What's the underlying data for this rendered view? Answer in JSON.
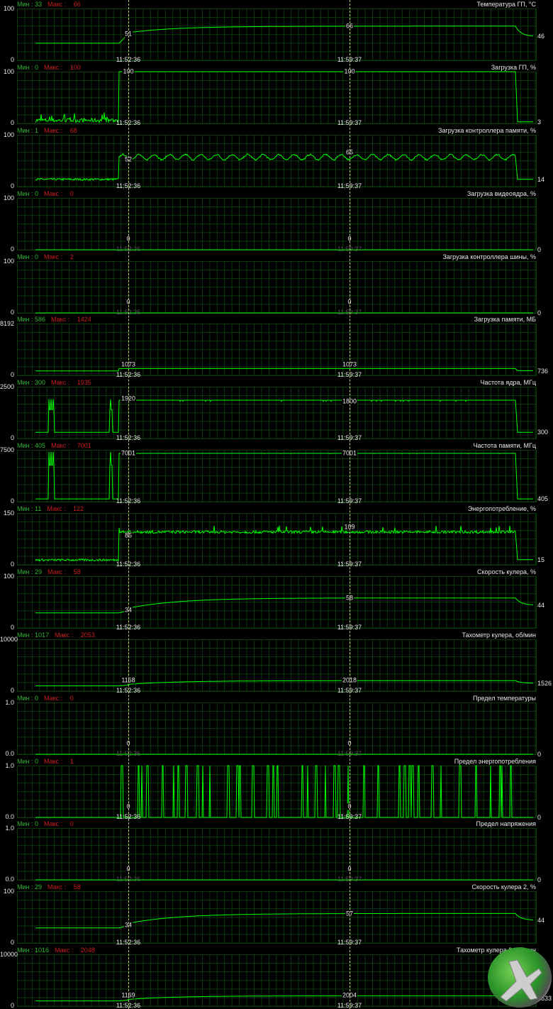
{
  "timestamps": [
    "11:52:36",
    "11:59:37"
  ],
  "colors": {
    "line": "#00ff00",
    "min": "#2fb52f",
    "max": "#c81e1e",
    "grid": "#0c3a0c"
  },
  "min_label": "Мин :",
  "max_label": "Макс :",
  "panels": [
    {
      "title": "Температура ГП, °C",
      "min": "33",
      "max": "66",
      "ymax": "100",
      "ymin": "0",
      "markers": [
        "51",
        "66"
      ],
      "current": "46",
      "shape": "ramp",
      "idle": 33,
      "load": 66,
      "end": 46,
      "m1": 51
    },
    {
      "title": "Загрузка ГП, %",
      "min": "0",
      "max": "100",
      "ymax": "100",
      "ymin": "0",
      "markers": [
        "100",
        "100"
      ],
      "current": "3",
      "shape": "step",
      "idle": 2,
      "load": 100,
      "end": 3,
      "noise": 8,
      "spiky": true
    },
    {
      "title": "Загрузка контроллера памяти, %",
      "min": "1",
      "max": "68",
      "ymax": "100",
      "ymin": "0",
      "markers": [
        "52",
        "65"
      ],
      "current": "14",
      "shape": "wave",
      "idle": 14,
      "load": 57,
      "end": 14
    },
    {
      "title": "Загрузка видеоядра, %",
      "min": "0",
      "max": "0",
      "ymax": "100",
      "ymin": "0",
      "markers": [
        "0",
        "0"
      ],
      "current": "0",
      "shape": "flat",
      "idle": 0,
      "load": 0,
      "end": 0,
      "dim": true
    },
    {
      "title": "Загрузка контроллера шины, %",
      "min": "0",
      "max": "2",
      "ymax": "100",
      "ymin": "0",
      "markers": [
        "0",
        "0"
      ],
      "current": "0",
      "shape": "flat",
      "idle": 0,
      "load": 0,
      "end": 0,
      "dim": true
    },
    {
      "title": "Загрузка памяти, МБ",
      "min": "586",
      "max": "1424",
      "ymax": "8192",
      "ymin": "0",
      "markers": [
        "1073",
        "1073"
      ],
      "current": "736",
      "shape": "step",
      "idle": 700,
      "load": 1073,
      "end": 736
    },
    {
      "title": "Частота ядра, МГц",
      "min": "300",
      "max": "1935",
      "ymax": "2500",
      "ymin": "0",
      "markers": [
        "1920",
        "1800"
      ],
      "current": "300",
      "shape": "clock",
      "idle": 300,
      "load": 1850,
      "end": 300
    },
    {
      "title": "Частота памяти, МГц",
      "min": "405",
      "max": "7001",
      "ymax": "7500",
      "ymin": "0",
      "markers": [
        "7001",
        "7001"
      ],
      "current": "405",
      "shape": "clock",
      "idle": 405,
      "load": 7001,
      "end": 405
    },
    {
      "title": "Энергопотребление, %",
      "min": "11",
      "max": "122",
      "ymax": "150",
      "ymin": "0",
      "markers": [
        "85",
        "109"
      ],
      "current": "15",
      "shape": "noisy",
      "idle": 14,
      "load": 95,
      "end": 15
    },
    {
      "title": "Скорость кулера, %",
      "min": "29",
      "max": "58",
      "ymax": "100",
      "ymin": "0",
      "markers": [
        "34",
        "58"
      ],
      "current": "44",
      "shape": "ramp",
      "idle": 29,
      "load": 58,
      "end": 44,
      "m1": 34
    },
    {
      "title": "Тахометр кулера, об/мин",
      "min": "1017",
      "max": "2053",
      "ymax": "10000",
      "ymin": "0",
      "markers": [
        "1168",
        "2018"
      ],
      "current": "1526",
      "shape": "ramp",
      "idle": 1017,
      "load": 2018,
      "end": 1526,
      "m1": 1168
    },
    {
      "title": "Предел температуры",
      "min": "0",
      "max": "0",
      "ymax": "1.0",
      "ymin": "0.0",
      "markers": [
        "0",
        "0"
      ],
      "current": "0",
      "shape": "flat",
      "idle": 0,
      "load": 0,
      "end": 0,
      "dim": true
    },
    {
      "title": "Предел энергопотребления",
      "min": "0",
      "max": "1",
      "ymax": "1.0",
      "ymin": "0.0",
      "markers": [
        "0",
        "0"
      ],
      "current": "0",
      "shape": "pulse",
      "idle": 0,
      "load": 0,
      "end": 0
    },
    {
      "title": "Предел напряжения",
      "min": "0",
      "max": "0",
      "ymax": "1.0",
      "ymin": "0.0",
      "markers": [
        "0",
        "0"
      ],
      "current": "0",
      "shape": "flat",
      "idle": 0,
      "load": 0,
      "end": 0,
      "dim": true
    },
    {
      "title": "Скорость кулера 2, %",
      "min": "29",
      "max": "58",
      "ymax": "100",
      "ymin": "0",
      "markers": [
        "34",
        "57"
      ],
      "current": "44",
      "shape": "ramp",
      "idle": 29,
      "load": 57,
      "end": 44,
      "m1": 34
    },
    {
      "title": "Тахометр кулера 2, об/мин",
      "min": "1016",
      "max": "2048",
      "ymax": "10000",
      "ymin": "0",
      "markers": [
        "1169",
        "2004"
      ],
      "current": "1533",
      "shape": "ramp",
      "idle": 1016,
      "load": 2004,
      "end": 1533,
      "m1": 1169
    }
  ]
}
